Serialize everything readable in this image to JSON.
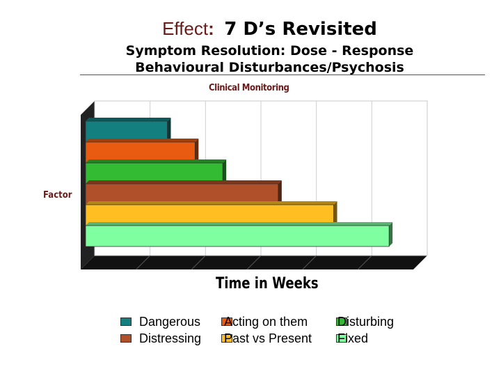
{
  "header": {
    "effect": "Effect",
    "colon": ":",
    "main_title": "7 D’s Revisited",
    "subtitle1": "Symptom Resolution: Dose - Response",
    "subtitle2": "Behavioural Disturbances/Psychosis",
    "chart_label": "Clinical Monitoring"
  },
  "chart_data": {
    "type": "bar",
    "orientation": "horizontal",
    "title": "Clinical Monitoring",
    "xlabel": "Time in Weeks",
    "ylabel": "Factor",
    "categories": [
      "Dangerous",
      "Acting on them",
      "Disturbing",
      "Distressing",
      "Past vs Present",
      "Fixed"
    ],
    "values": [
      1.5,
      2,
      2.5,
      3.5,
      4.5,
      5.5
    ],
    "xlim": [
      0,
      6
    ],
    "grid": true,
    "legend_position": "bottom",
    "colors": [
      "#137f7f",
      "#e85b10",
      "#33bb33",
      "#b0502a",
      "#ffbf22",
      "#80ffa0"
    ]
  },
  "legend": {
    "items": [
      {
        "label": "Dangerous",
        "color": "#137f7f"
      },
      {
        "label": "Acting on them",
        "color": "#e85b10"
      },
      {
        "label": "Disturbing",
        "color": "#33bb33"
      },
      {
        "label": "Distressing",
        "color": "#b0502a"
      },
      {
        "label": "Past vs Present",
        "color": "#ffbf22"
      },
      {
        "label": "Fixed",
        "color": "#80ffa0"
      }
    ]
  }
}
